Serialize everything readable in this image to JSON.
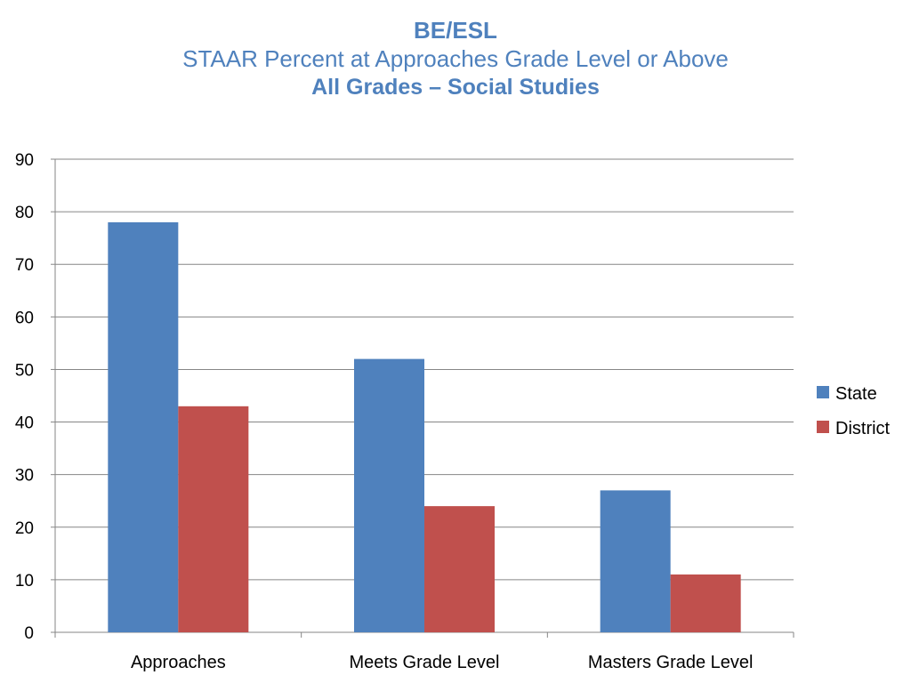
{
  "chart_data": {
    "type": "bar",
    "title": "BE/ESL",
    "subtitle": "STAAR Percent at Approaches Grade Level or Above",
    "subtitle2": "All Grades – Social Studies",
    "xlabel": "",
    "ylabel": "",
    "categories": [
      "Approaches",
      "Meets Grade Level",
      "Masters Grade Level"
    ],
    "series": [
      {
        "name": "State",
        "values": [
          78,
          52,
          27
        ],
        "color": "#4f81bd"
      },
      {
        "name": "District",
        "values": [
          43,
          24,
          11
        ],
        "color": "#c0504d"
      }
    ],
    "ylim": [
      0,
      90
    ],
    "yticks": [
      0,
      10,
      20,
      30,
      40,
      50,
      60,
      70,
      80,
      90
    ],
    "grid": true,
    "legend": "right"
  }
}
